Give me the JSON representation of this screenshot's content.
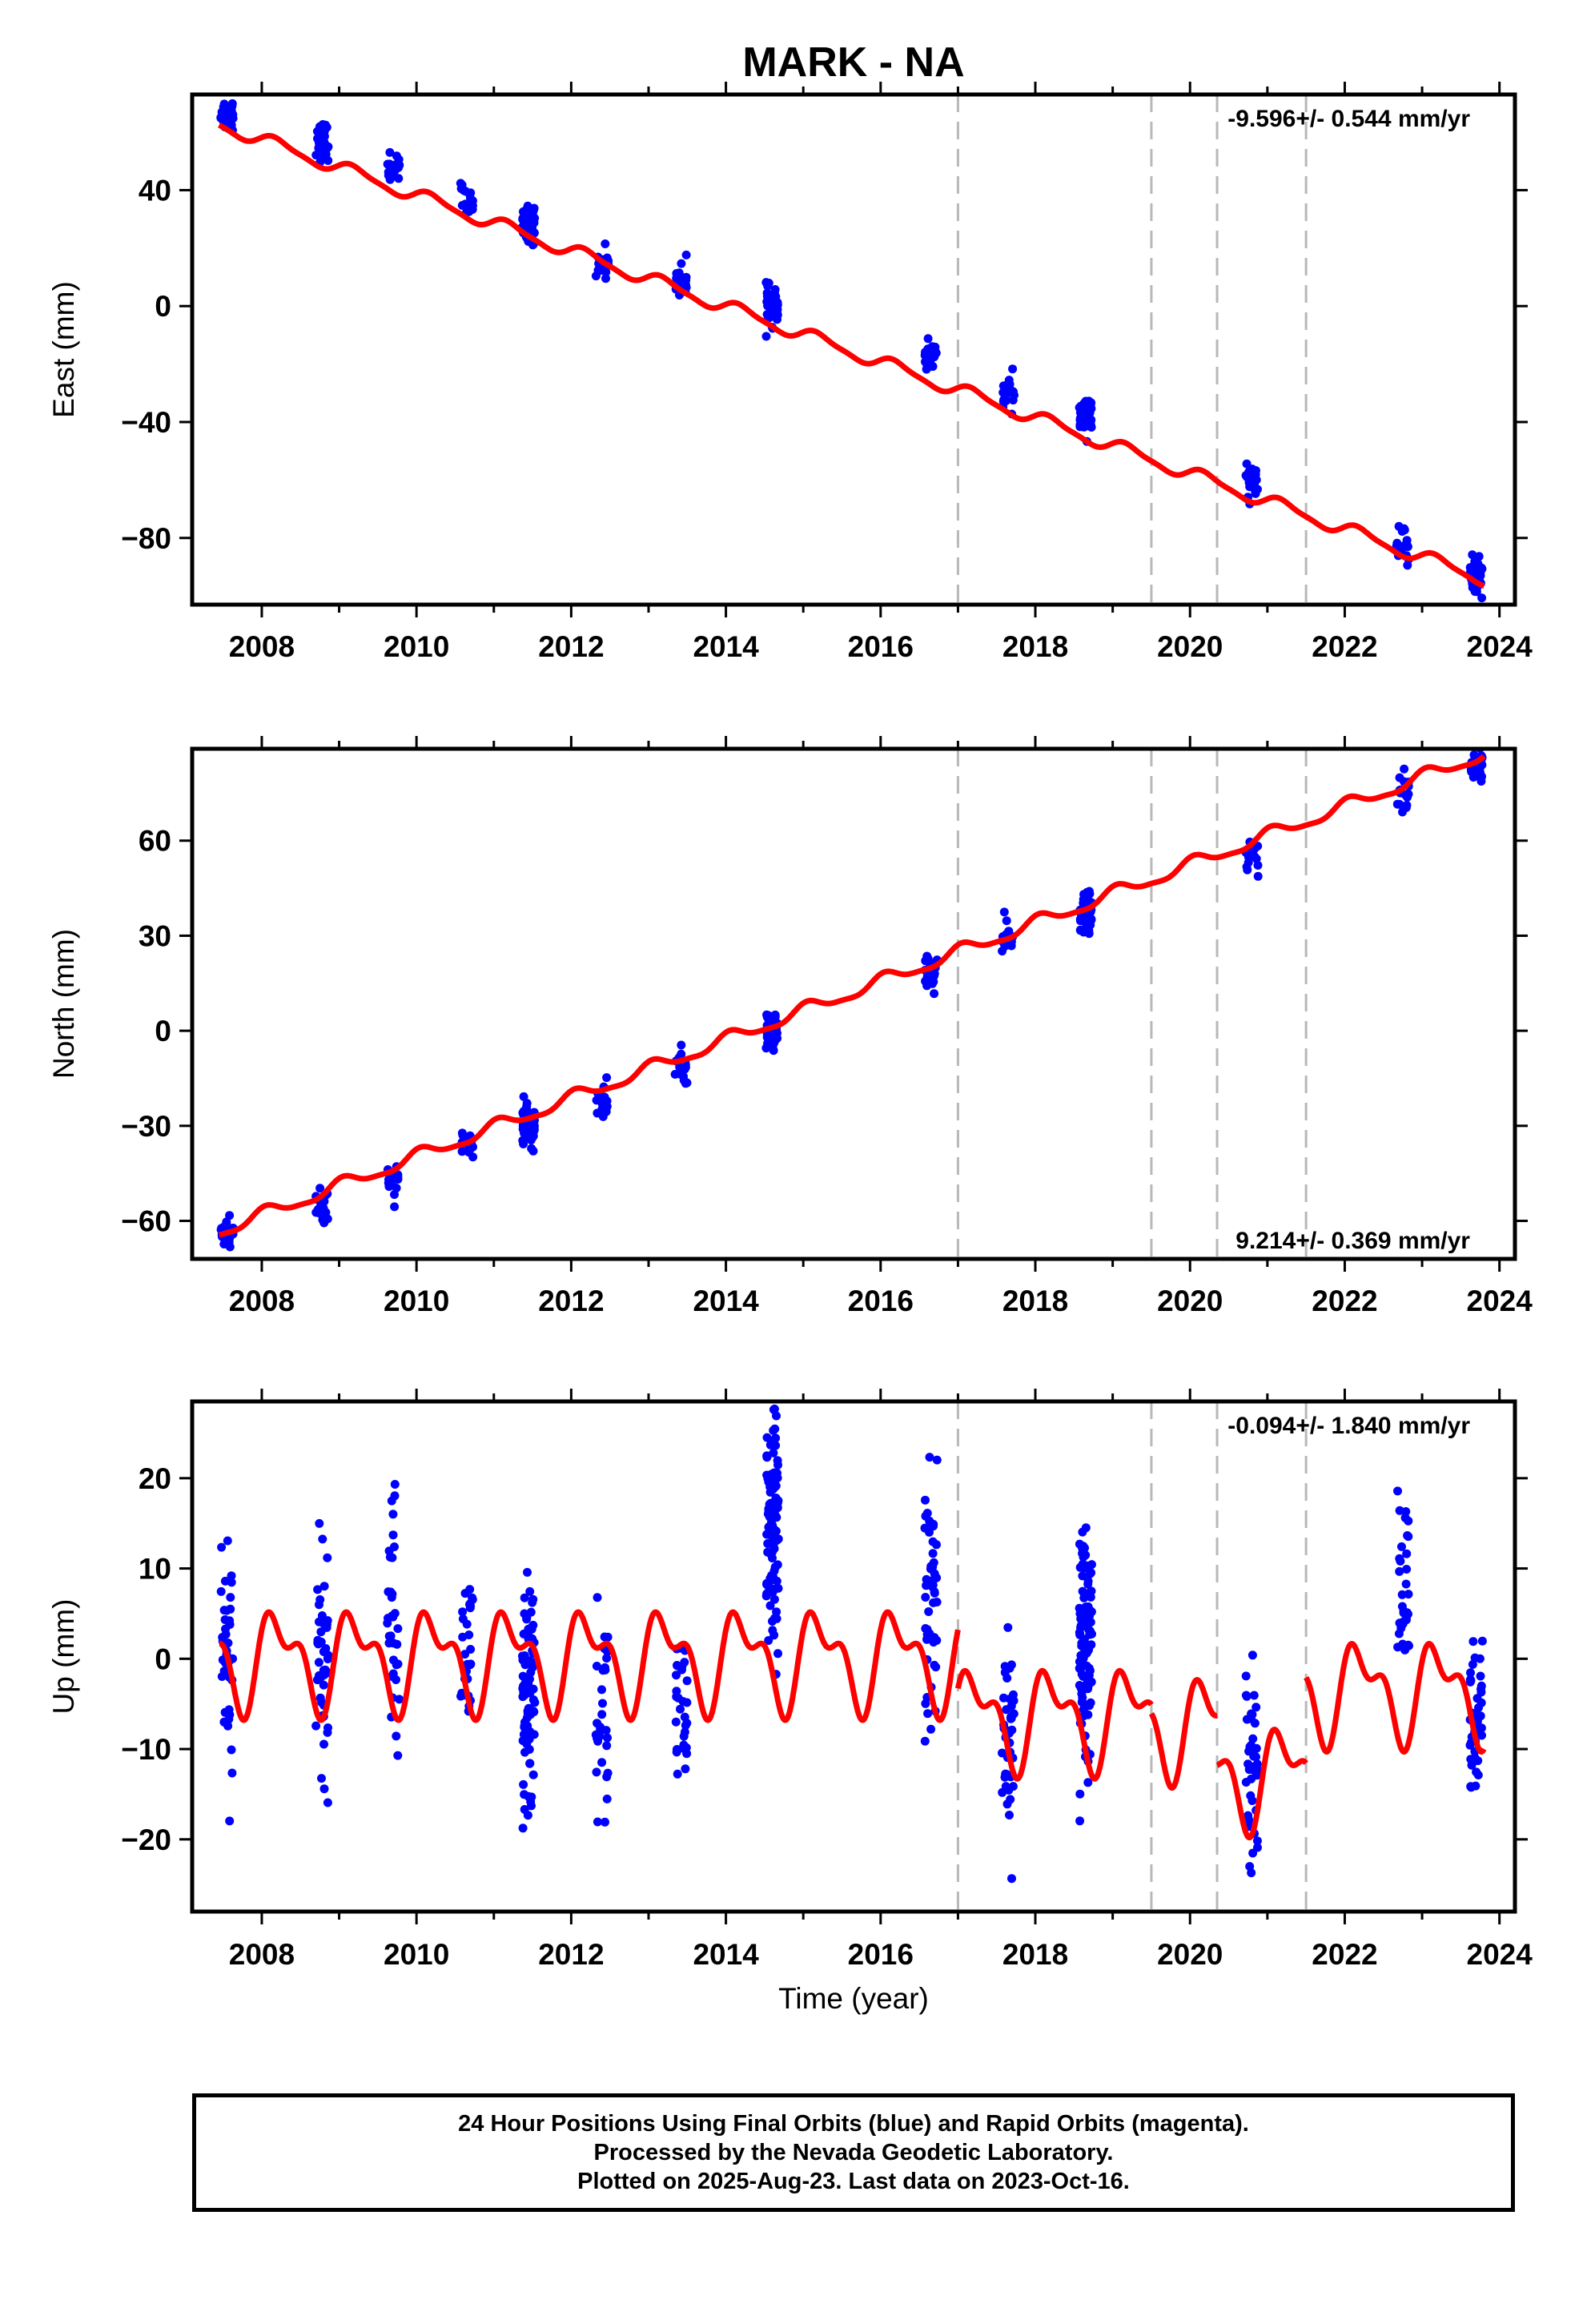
{
  "figure": {
    "title": "MARK - NA",
    "xlabel": "Time (year)",
    "footer": [
      "24 Hour Positions Using Final Orbits (blue) and Rapid Orbits (magenta).",
      "Processed by the Nevada Geodetic Laboratory.",
      "Plotted on 2025-Aug-23. Last data on 2023-Oct-16."
    ],
    "colors": {
      "final_orbits": "#0000ff",
      "model": "#ff0000",
      "event_lines": "#b8b8b8",
      "frame": "#000000"
    }
  },
  "chart_data": [
    {
      "type": "scatter",
      "component": "East",
      "ylabel": "East (mm)",
      "rate_text": "-9.596+/- 0.544 mm/yr",
      "xlim": [
        2007.1,
        2024.2
      ],
      "ylim": [
        -103,
        73
      ],
      "xticks": [
        2008,
        2010,
        2012,
        2014,
        2016,
        2018,
        2020,
        2022,
        2024
      ],
      "yticks": [
        40,
        0,
        -40,
        -80
      ],
      "ytick_labels": [
        "40",
        "0",
        "−40",
        "−80"
      ],
      "event_lines": [
        2017.0,
        2019.5,
        2020.35,
        2021.5
      ],
      "model": {
        "offset_at_2015": -9.8,
        "rate": -9.596,
        "annual_amp": 2.2,
        "annual_phase": 0.3,
        "steps": [
          {
            "t": 2021.5,
            "dy": 0
          }
        ],
        "start": 2007.45,
        "end": 2023.8
      },
      "campaigns": [
        {
          "t": 2007.55,
          "y": 66,
          "n": 40
        },
        {
          "t": 2008.78,
          "y": 57,
          "n": 40
        },
        {
          "t": 2009.7,
          "y": 48,
          "n": 20
        },
        {
          "t": 2010.65,
          "y": 36,
          "n": 18
        },
        {
          "t": 2011.45,
          "y": 28,
          "n": 60
        },
        {
          "t": 2012.4,
          "y": 15,
          "n": 20
        },
        {
          "t": 2013.42,
          "y": 9,
          "n": 18
        },
        {
          "t": 2014.6,
          "y": 0,
          "n": 50
        },
        {
          "t": 2016.65,
          "y": -18,
          "n": 25
        },
        {
          "t": 2017.65,
          "y": -30,
          "n": 18
        },
        {
          "t": 2018.65,
          "y": -38,
          "n": 60
        },
        {
          "t": 2020.8,
          "y": -61,
          "n": 25
        },
        {
          "t": 2022.75,
          "y": -83,
          "n": 20
        },
        {
          "t": 2023.7,
          "y": -93,
          "n": 35
        }
      ]
    },
    {
      "type": "scatter",
      "component": "North",
      "ylabel": "North (mm)",
      "rate_text": "9.214+/- 0.369 mm/yr",
      "xlim": [
        2007.1,
        2024.2
      ],
      "ylim": [
        -72,
        89
      ],
      "xticks": [
        2008,
        2010,
        2012,
        2014,
        2016,
        2018,
        2020,
        2022,
        2024
      ],
      "yticks": [
        60,
        30,
        0,
        -30,
        -60
      ],
      "ytick_labels": [
        "60",
        "30",
        "0",
        "−30",
        "−60"
      ],
      "event_lines": [
        2017.0,
        2019.5,
        2020.35,
        2021.5
      ],
      "model": {
        "offset_at_2015": 6.3,
        "rate": 9.214,
        "annual_amp": 2.0,
        "annual_phase": 1.2,
        "steps": [],
        "start": 2007.45,
        "end": 2023.8
      },
      "campaigns": [
        {
          "t": 2007.55,
          "y": -64,
          "n": 35
        },
        {
          "t": 2008.78,
          "y": -56,
          "n": 25
        },
        {
          "t": 2009.7,
          "y": -47,
          "n": 15
        },
        {
          "t": 2010.65,
          "y": -37,
          "n": 15
        },
        {
          "t": 2011.45,
          "y": -30,
          "n": 60
        },
        {
          "t": 2012.4,
          "y": -22,
          "n": 20
        },
        {
          "t": 2013.42,
          "y": -12,
          "n": 18
        },
        {
          "t": 2014.6,
          "y": 0,
          "n": 45
        },
        {
          "t": 2016.65,
          "y": 19,
          "n": 25
        },
        {
          "t": 2017.65,
          "y": 28,
          "n": 18
        },
        {
          "t": 2018.65,
          "y": 37,
          "n": 55
        },
        {
          "t": 2020.8,
          "y": 55,
          "n": 20
        },
        {
          "t": 2022.75,
          "y": 75,
          "n": 20
        },
        {
          "t": 2023.7,
          "y": 84,
          "n": 35
        }
      ]
    },
    {
      "type": "scatter",
      "component": "Up",
      "ylabel": "Up (mm)",
      "rate_text": "-0.094+/- 1.840 mm/yr",
      "xlim": [
        2007.1,
        2024.2
      ],
      "ylim": [
        -28,
        28.5
      ],
      "xticks": [
        2008,
        2010,
        2012,
        2014,
        2016,
        2018,
        2020,
        2022,
        2024
      ],
      "yticks": [
        20,
        10,
        0,
        -10,
        -20
      ],
      "ytick_labels": [
        "20",
        "10",
        "0",
        "−10",
        "−20"
      ],
      "event_lines": [
        2017.0,
        2019.5,
        2020.35,
        2021.5
      ],
      "model": {
        "segments": [
          {
            "start": 2007.45,
            "end": 2017.0,
            "base": 0.0,
            "a1": 4.5,
            "p1": 0.2,
            "a2": 2.6,
            "p2": 1.1
          },
          {
            "start": 2017.0,
            "end": 2019.5,
            "base": -6.5,
            "a1": 4.5,
            "p1": 0.2,
            "a2": 2.6,
            "p2": 1.1
          },
          {
            "start": 2019.5,
            "end": 2020.35,
            "base": -7.5,
            "a1": 4.5,
            "p1": 0.2,
            "a2": 2.6,
            "p2": 1.1
          },
          {
            "start": 2020.35,
            "end": 2021.5,
            "base": -13.0,
            "a1": 4.5,
            "p1": 0.2,
            "a2": 2.6,
            "p2": 1.1
          },
          {
            "start": 2021.5,
            "end": 2023.8,
            "base": -3.5,
            "a1": 4.5,
            "p1": 0.2,
            "a2": 2.6,
            "p2": 1.1
          }
        ]
      },
      "campaigns": [
        {
          "t": 2007.55,
          "y": 2,
          "n": 40,
          "spread": 7
        },
        {
          "t": 2008.78,
          "y": 0,
          "n": 45,
          "spread": 8
        },
        {
          "t": 2009.7,
          "y": 5,
          "n": 35,
          "spread": 6
        },
        {
          "t": 2010.65,
          "y": 1,
          "n": 30,
          "spread": 5
        },
        {
          "t": 2011.45,
          "y": -6,
          "n": 90,
          "spread": 7
        },
        {
          "t": 2012.4,
          "y": -6,
          "n": 30,
          "spread": 6
        },
        {
          "t": 2013.42,
          "y": -6,
          "n": 30,
          "spread": 5
        },
        {
          "t": 2014.6,
          "y": 14,
          "n": 110,
          "spread": 6
        },
        {
          "t": 2016.65,
          "y": 7,
          "n": 50,
          "spread": 7
        },
        {
          "t": 2017.65,
          "y": -10,
          "n": 40,
          "spread": 6
        },
        {
          "t": 2018.65,
          "y": 2,
          "n": 110,
          "spread": 6
        },
        {
          "t": 2020.8,
          "y": -11,
          "n": 45,
          "spread": 6
        },
        {
          "t": 2022.75,
          "y": 7,
          "n": 35,
          "spread": 5
        },
        {
          "t": 2023.7,
          "y": -8,
          "n": 45,
          "spread": 5
        }
      ]
    }
  ]
}
